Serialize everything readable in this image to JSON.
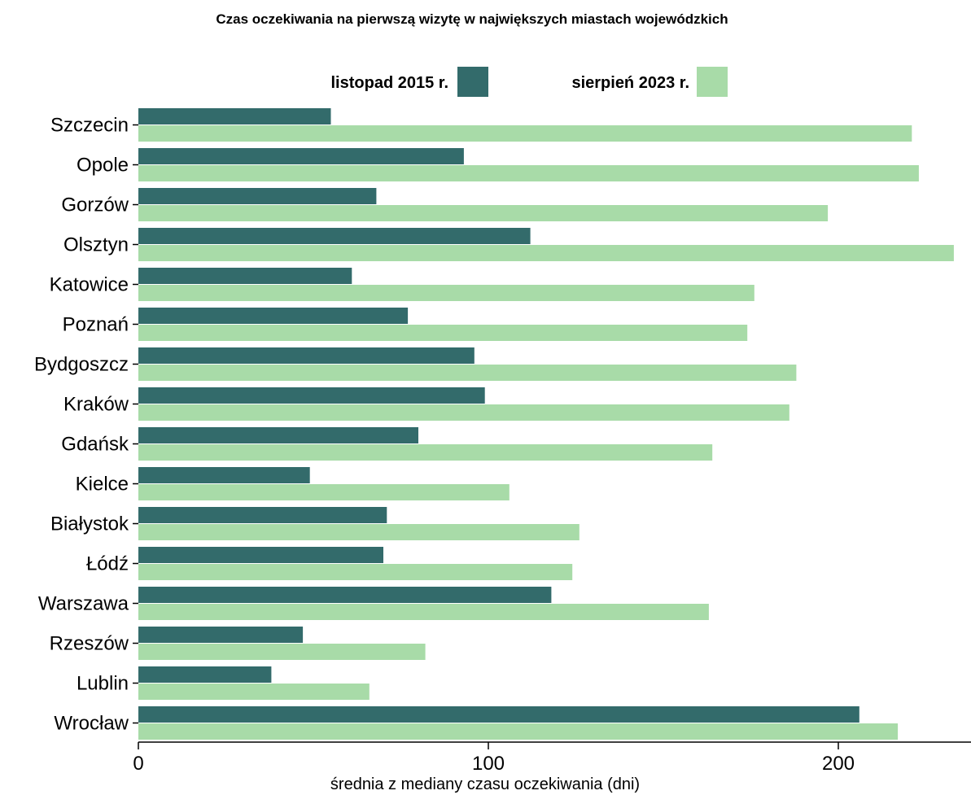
{
  "chart_data": {
    "type": "bar",
    "orientation": "horizontal",
    "title": "Czas oczekiwania na pierwszą wizytę w największych miastach wojewódzkich",
    "xlabel": "średnia z mediany czasu oczekiwania (dni)",
    "ylabel": "",
    "xlim": [
      0,
      238
    ],
    "xticks": [
      0,
      100,
      200
    ],
    "grid": false,
    "legend_position": "top",
    "categories": [
      "Szczecin",
      "Opole",
      "Gorzów",
      "Olsztyn",
      "Katowice",
      "Poznań",
      "Bydgoszcz",
      "Kraków",
      "Gdańsk",
      "Kielce",
      "Białystok",
      "Łódź",
      "Warszawa",
      "Rzeszów",
      "Lublin",
      "Wrocław"
    ],
    "series": [
      {
        "name": "listopad 2015 r.",
        "color": "#336b6b",
        "values": [
          55,
          93,
          68,
          112,
          61,
          77,
          96,
          99,
          80,
          49,
          71,
          70,
          118,
          47,
          38,
          206
        ]
      },
      {
        "name": "sierpień 2023 r.",
        "color": "#a8dba8",
        "values": [
          221,
          223,
          197,
          233,
          176,
          174,
          188,
          186,
          164,
          106,
          126,
          124,
          163,
          82,
          66,
          217
        ]
      }
    ]
  }
}
